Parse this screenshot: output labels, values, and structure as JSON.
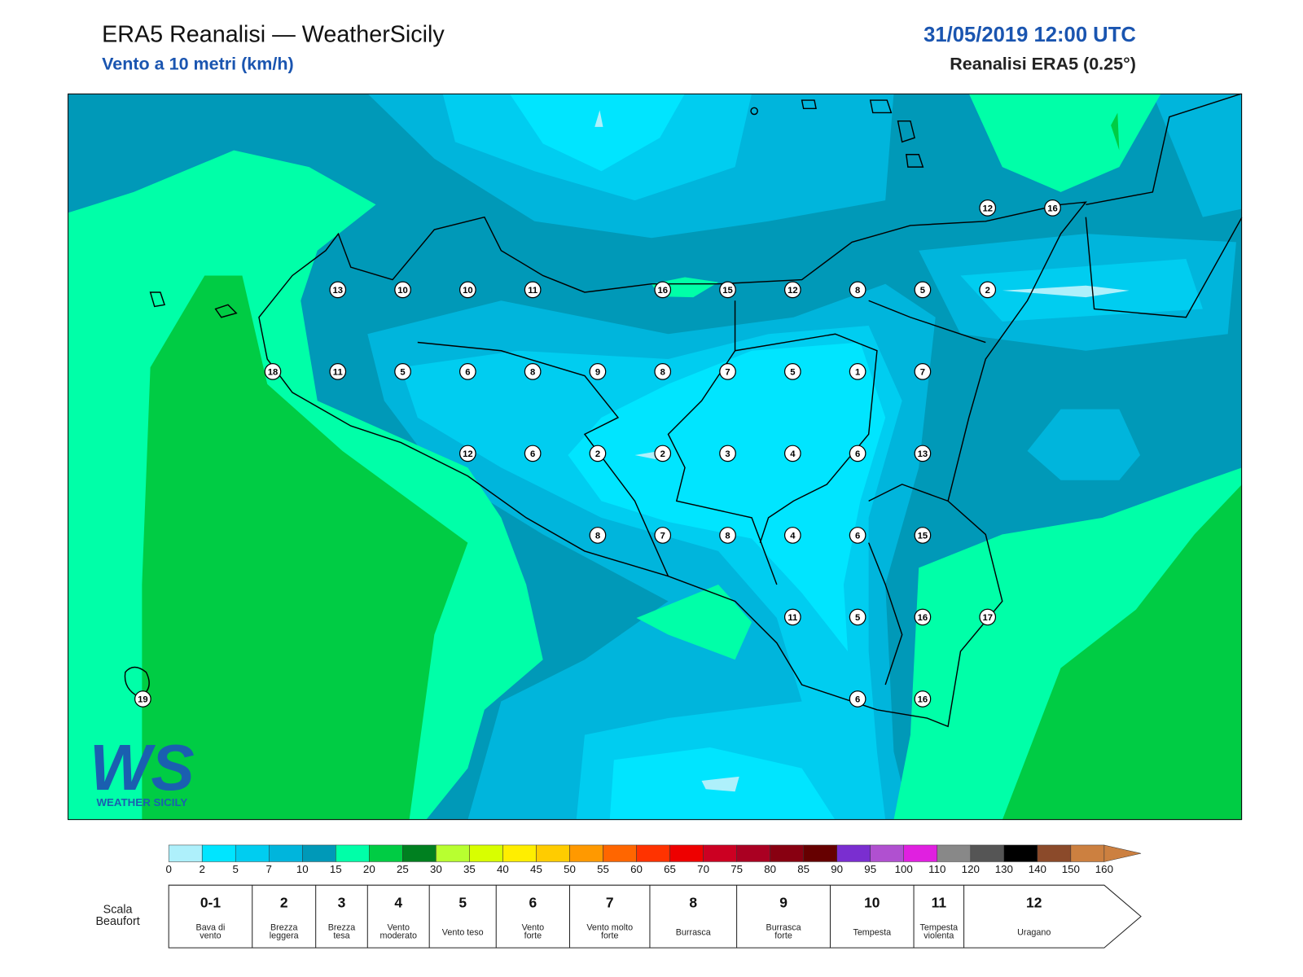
{
  "header": {
    "title": "ERA5 Reanalisi — WeatherSicily",
    "subtitle": "Vento a 10 metri (km/h)",
    "datetime": "31/05/2019 12:00 UTC",
    "model": "Reanalisi ERA5 (0.25°)"
  },
  "stations": [
    12,
    16,
    13,
    10,
    10,
    11,
    16,
    15,
    12,
    8,
    5,
    2,
    18,
    11,
    5,
    6,
    8,
    9,
    8,
    7,
    5,
    1,
    7,
    12,
    6,
    2,
    2,
    3,
    4,
    6,
    13,
    8,
    7,
    8,
    4,
    6,
    15,
    11,
    5,
    16,
    17,
    19,
    6,
    16
  ],
  "logo": {
    "mark": "WS",
    "name": "WEATHER SICILY"
  },
  "colorbar": {
    "ticks": [
      0,
      2,
      5,
      7,
      10,
      15,
      20,
      25,
      30,
      35,
      40,
      45,
      50,
      55,
      60,
      65,
      70,
      75,
      80,
      85,
      90,
      95,
      100,
      110,
      120,
      130,
      140,
      150,
      160
    ],
    "colors": [
      "#aef0fb",
      "#00e5ff",
      "#00cdf0",
      "#00b5dc",
      "#0099b8",
      "#00ffa8",
      "#00cc44",
      "#008020",
      "#b8ff30",
      "#d8ff00",
      "#ffee00",
      "#ffcc00",
      "#ff9900",
      "#ff6600",
      "#ff3300",
      "#ee0000",
      "#cc0022",
      "#aa0022",
      "#880011",
      "#660000",
      "#7a2ed0",
      "#b050d0",
      "#e020e0",
      "#888888",
      "#555555",
      "#000000",
      "#8b4a2a",
      "#cc8040"
    ]
  },
  "beaufort": {
    "label": [
      "Scala",
      "Beaufort"
    ],
    "levels": [
      {
        "force": "0-1",
        "desc": [
          "Bava di",
          "vento"
        ]
      },
      {
        "force": "2",
        "desc": [
          "Brezza",
          "leggera"
        ]
      },
      {
        "force": "3",
        "desc": [
          "Brezza",
          "tesa"
        ]
      },
      {
        "force": "4",
        "desc": [
          "Vento",
          "moderato"
        ]
      },
      {
        "force": "5",
        "desc": [
          "Vento teso"
        ]
      },
      {
        "force": "6",
        "desc": [
          "Vento",
          "forte"
        ]
      },
      {
        "force": "7",
        "desc": [
          "Vento molto",
          "forte"
        ]
      },
      {
        "force": "8",
        "desc": [
          "Burrasca"
        ]
      },
      {
        "force": "9",
        "desc": [
          "Burrasca",
          "forte"
        ]
      },
      {
        "force": "10",
        "desc": [
          "Tempesta"
        ]
      },
      {
        "force": "11",
        "desc": [
          "Tempesta",
          "violenta"
        ]
      },
      {
        "force": "12",
        "desc": [
          "Uragano"
        ]
      }
    ]
  }
}
